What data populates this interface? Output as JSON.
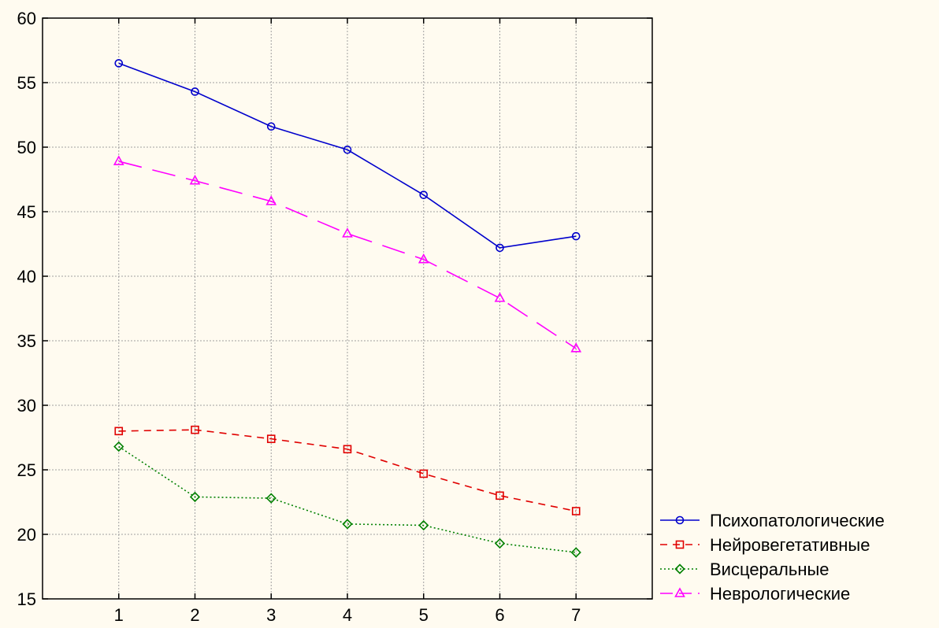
{
  "chart_data": {
    "type": "line",
    "title": "",
    "xlabel": "",
    "ylabel": "",
    "x": [
      1,
      2,
      3,
      4,
      5,
      6,
      7
    ],
    "xlim": [
      0,
      8
    ],
    "ylim": [
      15,
      60
    ],
    "yticks": [
      15,
      20,
      25,
      30,
      35,
      40,
      45,
      50,
      55,
      60
    ],
    "xticks": [
      1,
      2,
      3,
      4,
      5,
      6,
      7
    ],
    "grid": true,
    "legend_position": "bottom-right, outside plot",
    "series": [
      {
        "name": "Психопатологические",
        "values": [
          56.5,
          54.3,
          51.6,
          49.8,
          46.3,
          42.2,
          43.1
        ],
        "color": "#0000cc",
        "marker": "circle",
        "line_style": "solid"
      },
      {
        "name": "Нейровегетативные",
        "values": [
          28.0,
          28.1,
          27.4,
          26.6,
          24.7,
          23.0,
          21.8
        ],
        "color": "#e00000",
        "marker": "square",
        "line_style": "dashed"
      },
      {
        "name": "Висцеральные",
        "values": [
          26.8,
          22.9,
          22.8,
          20.8,
          20.7,
          19.3,
          18.6
        ],
        "color": "#008000",
        "marker": "diamond",
        "line_style": "dotted"
      },
      {
        "name": "Неврологические",
        "values": [
          48.9,
          47.4,
          45.8,
          43.3,
          41.3,
          38.3,
          34.4
        ],
        "color": "#ff00ff",
        "marker": "triangle",
        "line_style": "long-dash"
      }
    ]
  }
}
